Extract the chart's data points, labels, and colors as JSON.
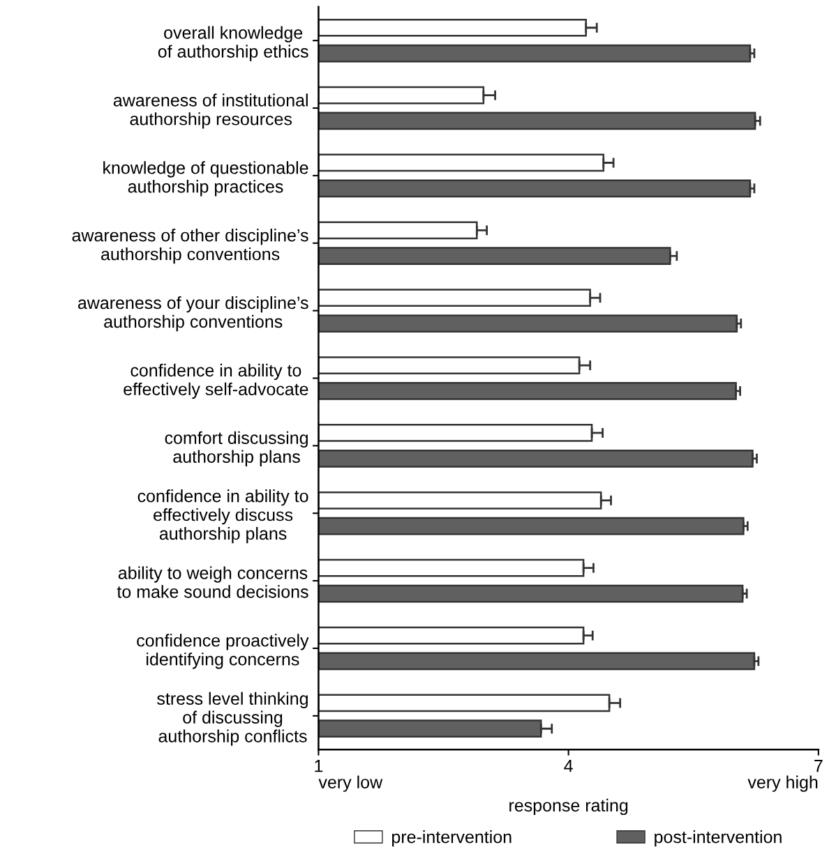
{
  "chart_data": {
    "type": "bar",
    "orientation": "horizontal",
    "xlabel": "response rating",
    "categories": [
      "overall knowledge\nof authorship ethics",
      "awareness of institutional\nauthorship resources",
      "knowledge of questionable\nauthorship practices",
      "awareness of other discipline’s\nauthorship conventions",
      "awareness of your discipline’s\nauthorship conventions",
      "confidence in ability to\neffectively self-advocate",
      "comfort discussing\nauthorship plans",
      "confidence in ability to\neffectively discuss\nauthorship plans",
      "ability to weigh concerns\nto make sound decisions",
      "confidence proactively\nidentifying concerns",
      "stress level thinking\nof discussing\nauthorship conflicts"
    ],
    "series": [
      {
        "name": "pre-intervention",
        "color": "#ffffff",
        "values": [
          4.21,
          2.98,
          4.42,
          2.9,
          4.26,
          4.13,
          4.28,
          4.39,
          4.18,
          4.18,
          4.49
        ],
        "errors": [
          [
            4.21,
            4.34
          ],
          [
            2.98,
            3.12
          ],
          [
            4.42,
            4.54
          ],
          [
            2.9,
            3.02
          ],
          [
            4.26,
            4.38
          ],
          [
            4.13,
            4.26
          ],
          [
            4.28,
            4.41
          ],
          [
            4.39,
            4.51
          ],
          [
            4.18,
            4.3
          ],
          [
            4.18,
            4.29
          ],
          [
            4.49,
            4.62
          ]
        ]
      },
      {
        "name": "post-intervention",
        "color": "#606060",
        "values": [
          6.18,
          6.24,
          6.18,
          5.22,
          6.02,
          6.01,
          6.21,
          6.1,
          6.09,
          6.23,
          3.67
        ],
        "errors": [
          [
            6.18,
            6.23
          ],
          [
            6.24,
            6.3
          ],
          [
            6.18,
            6.23
          ],
          [
            5.22,
            5.3
          ],
          [
            6.02,
            6.07
          ],
          [
            6.01,
            6.06
          ],
          [
            6.21,
            6.26
          ],
          [
            6.1,
            6.15
          ],
          [
            6.09,
            6.14
          ],
          [
            6.23,
            6.28
          ],
          [
            3.67,
            3.8
          ]
        ]
      }
    ],
    "xlim": [
      1,
      7
    ],
    "xticks": [
      1,
      4,
      7
    ],
    "annotations": [
      "very low",
      "very high"
    ],
    "legend": "bottom",
    "grid": false
  }
}
